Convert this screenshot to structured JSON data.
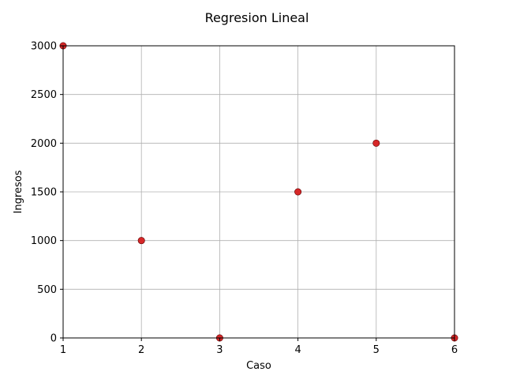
{
  "chart_data": {
    "type": "scatter",
    "title": "Regresion Lineal",
    "xlabel": "Caso",
    "ylabel": "Ingresos",
    "xlim": [
      1,
      6
    ],
    "ylim": [
      0,
      3000
    ],
    "xticks": [
      1,
      2,
      3,
      4,
      5,
      6
    ],
    "yticks": [
      0,
      500,
      1000,
      1500,
      2000,
      2500,
      3000
    ],
    "grid": true,
    "series": [
      {
        "x": [
          1,
          2,
          3,
          4,
          5,
          6
        ],
        "y": [
          3000,
          1000,
          0,
          1500,
          2000,
          0
        ],
        "color": "#d62728"
      }
    ]
  }
}
